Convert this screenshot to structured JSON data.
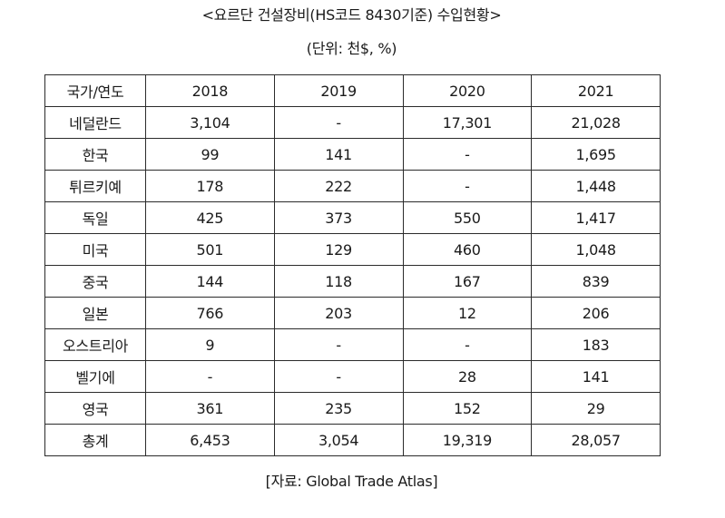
{
  "title": "<요르단 건설장비(HS코드 8430기준) 수입현황>",
  "unit": "(단위: 천$, %)",
  "table": {
    "headers": [
      "국가/연도",
      "2018",
      "2019",
      "2020",
      "2021"
    ],
    "rows": [
      [
        "네덜란드",
        "3,104",
        "-",
        "17,301",
        "21,028"
      ],
      [
        "한국",
        "99",
        "141",
        "-",
        "1,695"
      ],
      [
        "튀르키예",
        "178",
        "222",
        "-",
        "1,448"
      ],
      [
        "독일",
        "425",
        "373",
        "550",
        "1,417"
      ],
      [
        "미국",
        "501",
        "129",
        "460",
        "1,048"
      ],
      [
        "중국",
        "144",
        "118",
        "167",
        "839"
      ],
      [
        "일본",
        "766",
        "203",
        "12",
        "206"
      ],
      [
        "오스트리아",
        "9",
        "-",
        "-",
        "183"
      ],
      [
        "벨기에",
        "-",
        "-",
        "28",
        "141"
      ],
      [
        "영국",
        "361",
        "235",
        "152",
        "29"
      ],
      [
        "총계",
        "6,453",
        "3,054",
        "19,319",
        "28,057"
      ]
    ]
  },
  "source": "[자료: Global Trade Atlas]"
}
